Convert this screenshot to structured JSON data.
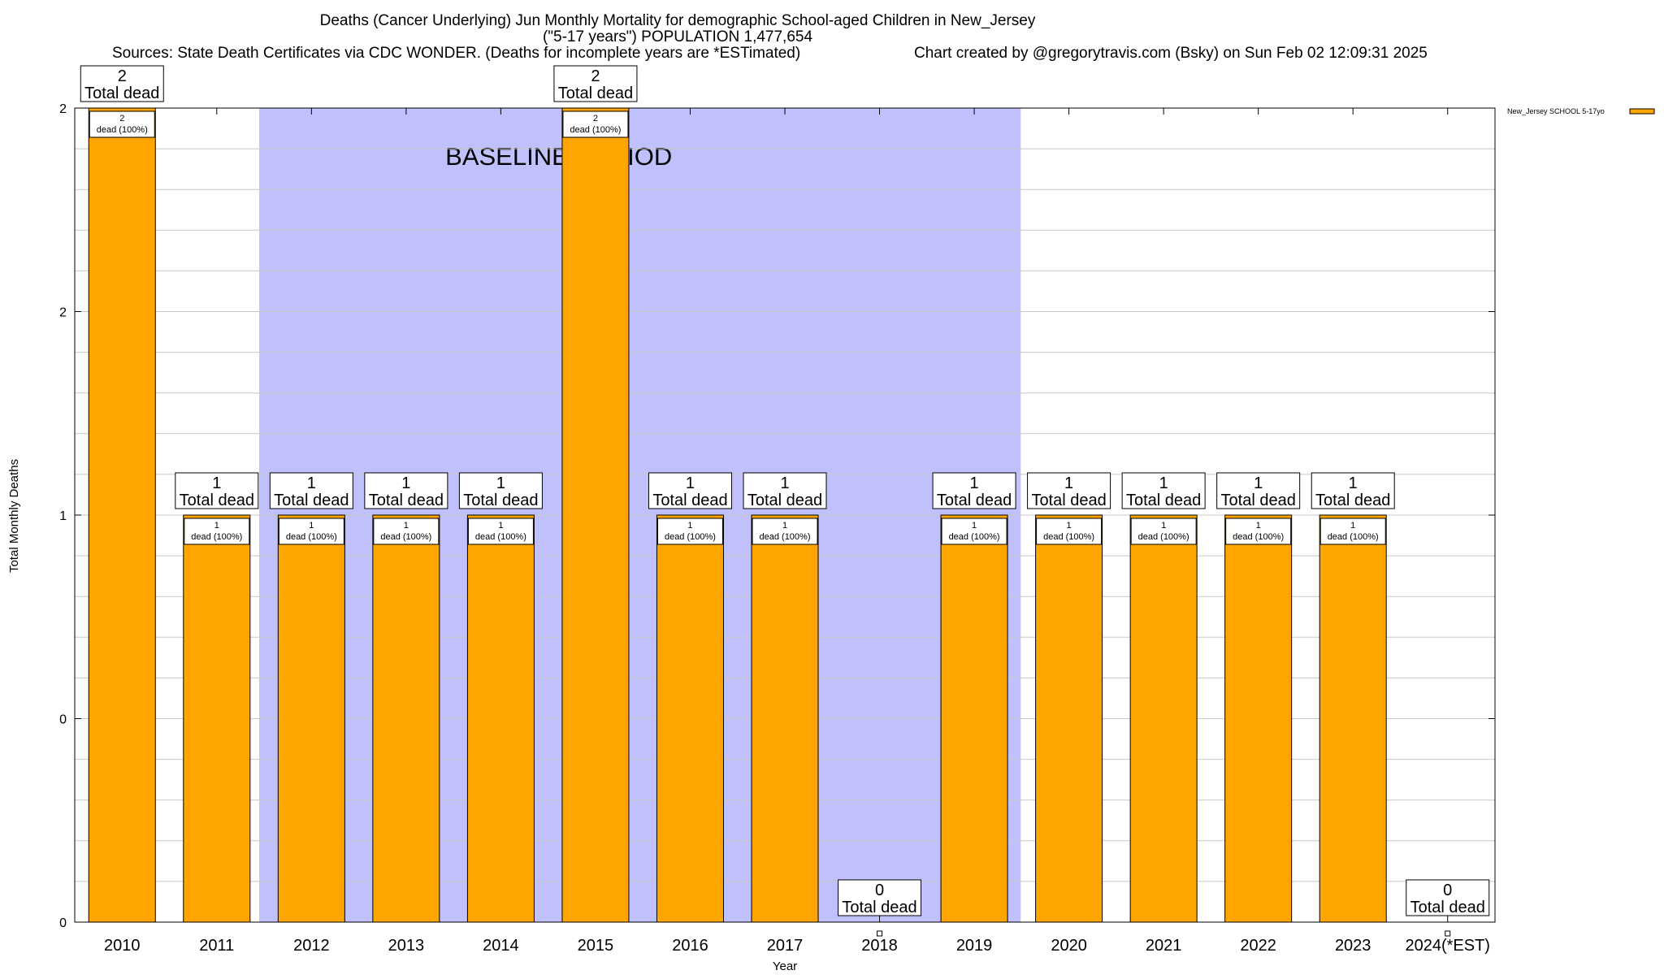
{
  "title_line1": "Deaths (Cancer Underlying) Jun Monthly Mortality for demographic School-aged Children in New_Jersey",
  "title_line2": "(\"5-17 years\") POPULATION 1,477,654",
  "sources": "Sources: State Death Certificates via CDC WONDER. (Deaths for incomplete years are *ESTimated)",
  "credit": "Chart created by @gregorytravis.com (Bsky) on Sun Feb 02 12:09:31 2025",
  "baseline_label": "BASELINE PERIOD",
  "colors": {
    "bar": "#ffa500",
    "baseline": "#c0c0fc",
    "grid": "#c8c8c8"
  },
  "chart_data": {
    "type": "bar",
    "xlabel": "Year",
    "ylabel": "Total Monthly Deaths",
    "legend": {
      "position": "top-right",
      "label": "New_Jersey SCHOOL 5-17yo"
    },
    "ylim": [
      0,
      2
    ],
    "y_tick_labels": [
      "0",
      "0",
      "1",
      "2",
      "2"
    ],
    "categories": [
      "2010",
      "2011",
      "2012",
      "2013",
      "2014",
      "2015",
      "2016",
      "2017",
      "2018",
      "2019",
      "2020",
      "2021",
      "2022",
      "2023",
      "2024(*EST)"
    ],
    "values": [
      2,
      1,
      1,
      1,
      1,
      2,
      1,
      1,
      0,
      1,
      1,
      1,
      1,
      1,
      0
    ],
    "total_label_text": "Total dead",
    "inner_label_text": "dead (100%)",
    "baseline_period": [
      "2012",
      "2019"
    ],
    "grid": true
  }
}
